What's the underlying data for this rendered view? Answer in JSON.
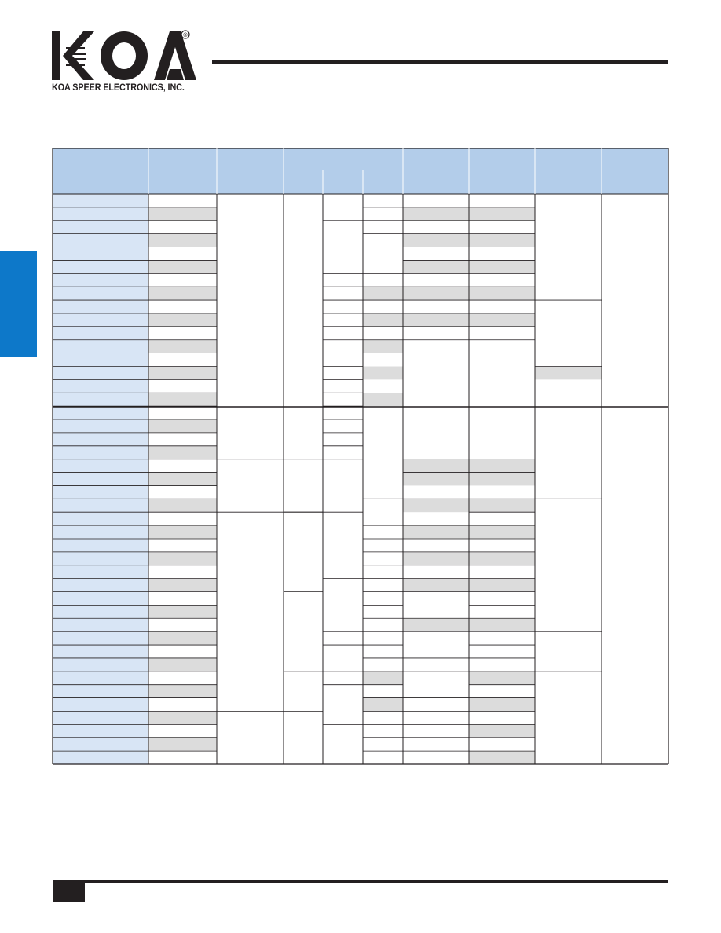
{
  "brand": {
    "logo_text": "KOA",
    "registered_mark": "®",
    "company_name": "KOA SPEER ELECTRONICS, INC."
  },
  "colors": {
    "header_fill": "#b3cdea",
    "row_label_fill": "#d8e5f5",
    "alt_row_fill": "#dcdcdc",
    "side_tab": "#0d78c9",
    "rule": "#231f20"
  },
  "table": {
    "header_columns": [
      "",
      "",
      "",
      "",
      "",
      "",
      "",
      "",
      "",
      ""
    ],
    "row_count": 43,
    "shaded_rows_note": "alternating grey in column 2"
  }
}
